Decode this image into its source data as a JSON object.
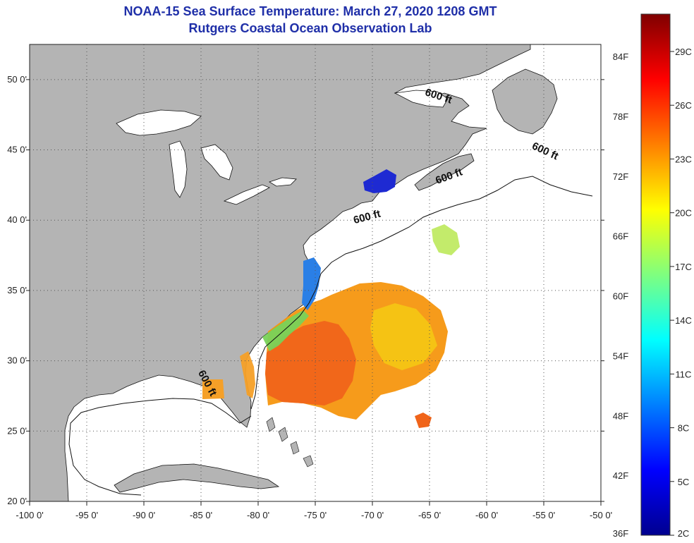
{
  "title": {
    "line1": "NOAA-15 Sea Surface Temperature:  March 27, 2020 1208 GMT",
    "line2": "Rutgers Coastal Ocean Observation Lab"
  },
  "map": {
    "lon_range": [
      -100,
      -50
    ],
    "lat_range": [
      20,
      52.5
    ],
    "lon_ticks": [
      {
        "value": -100,
        "label": "-100 0'"
      },
      {
        "value": -95,
        "label": "-95 0'"
      },
      {
        "value": -90,
        "label": "-90 0'"
      },
      {
        "value": -85,
        "label": "-85 0'"
      },
      {
        "value": -80,
        "label": "-80 0'"
      },
      {
        "value": -75,
        "label": "-75 0'"
      },
      {
        "value": -70,
        "label": "-70 0'"
      },
      {
        "value": -65,
        "label": "-65 0'"
      },
      {
        "value": -60,
        "label": "-60 0'"
      },
      {
        "value": -55,
        "label": "-55 0'"
      },
      {
        "value": -50,
        "label": "-50 0'"
      }
    ],
    "lat_ticks": [
      {
        "value": 50,
        "label": "50 0'"
      },
      {
        "value": 45,
        "label": "45 0'"
      },
      {
        "value": 40,
        "label": "40 0'"
      },
      {
        "value": 35,
        "label": "35 0'"
      },
      {
        "value": 30,
        "label": "30 0'"
      },
      {
        "value": 25,
        "label": "25 0'"
      },
      {
        "value": 20,
        "label": "20 0'"
      }
    ],
    "contour_labels": [
      {
        "text": "600 ft",
        "lon": -64.3,
        "lat": 48.6,
        "rotate": 18
      },
      {
        "text": "600 ft",
        "lon": -55.0,
        "lat": 44.7,
        "rotate": 25
      },
      {
        "text": "600 ft",
        "lon": -63.2,
        "lat": 42.9,
        "rotate": -20
      },
      {
        "text": "600 ft",
        "lon": -70.4,
        "lat": 40.0,
        "rotate": -15
      },
      {
        "text": "600 ft",
        "lon": -84.7,
        "lat": 28.3,
        "rotate": 62
      }
    ],
    "colors": {
      "land": "#b4b4b4",
      "ocean": "#ffffff",
      "grid": "#555555",
      "coast": "#111111"
    }
  },
  "colorbar": {
    "colors": [
      "#00008f",
      "#0000ff",
      "#007fff",
      "#00ffff",
      "#7fff7f",
      "#ffff00",
      "#ff7f00",
      "#ff0000",
      "#7f0000"
    ],
    "fahrenheit_labels": [
      "84F",
      "78F",
      "72F",
      "66F",
      "60F",
      "54F",
      "48F",
      "42F",
      "36F"
    ],
    "celsius_labels": [
      "29C",
      "26C",
      "23C",
      "20C",
      "17C",
      "14C",
      "11C",
      "8C",
      "5C",
      "2C"
    ]
  }
}
